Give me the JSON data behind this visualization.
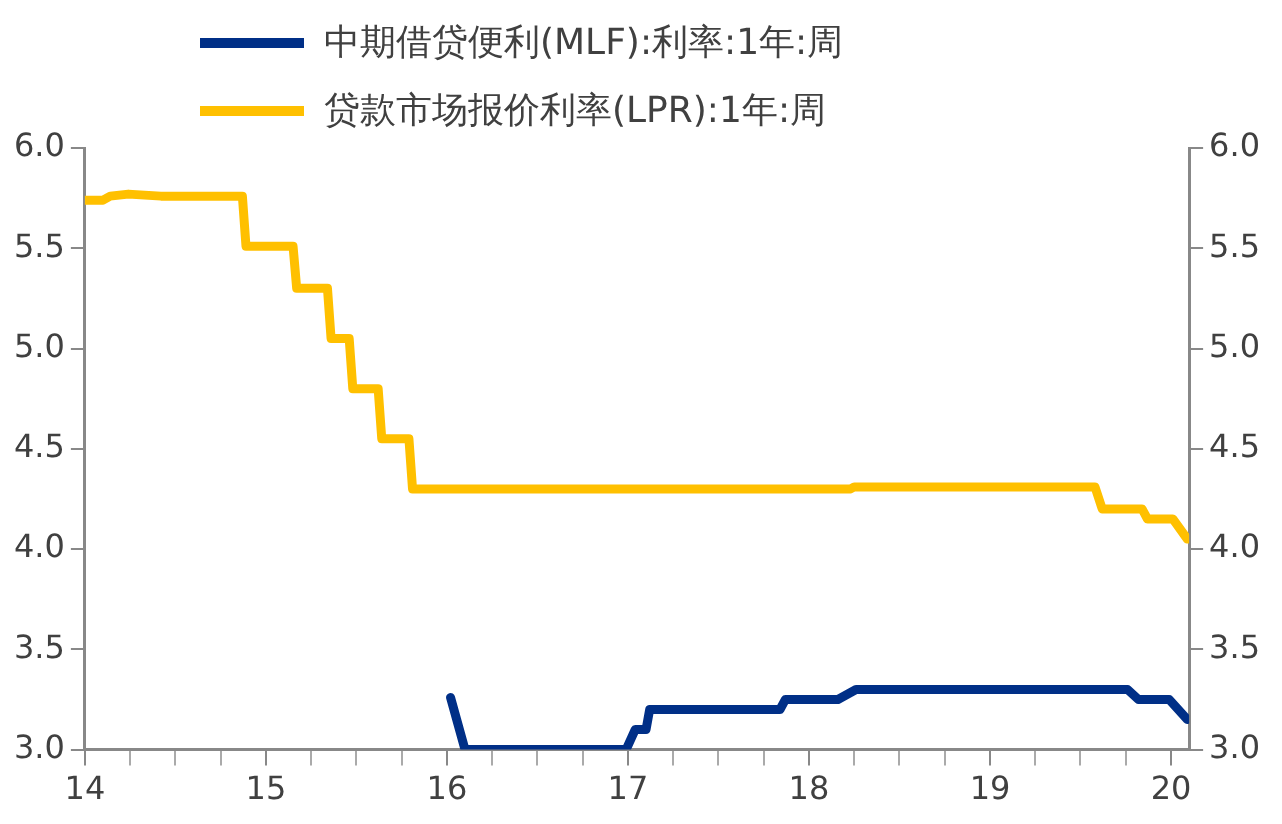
{
  "chart_data": {
    "type": "line",
    "legend": "top",
    "marker": "none",
    "line_style": "solid",
    "grid": false,
    "xlim": [
      14,
      20.1
    ],
    "xticks": [
      14,
      {
        "value": 14.25,
        "label": null
      },
      {
        "value": 14.5,
        "label": null
      },
      {
        "value": 14.75,
        "label": null
      },
      15,
      {
        "value": 15.25,
        "label": null
      },
      {
        "value": 15.5,
        "label": null
      },
      {
        "value": 15.75,
        "label": null
      },
      16,
      {
        "value": 16.25,
        "label": null
      },
      {
        "value": 16.5,
        "label": null
      },
      {
        "value": 16.75,
        "label": null
      },
      17,
      {
        "value": 17.25,
        "label": null
      },
      {
        "value": 17.5,
        "label": null
      },
      {
        "value": 17.75,
        "label": null
      },
      18,
      {
        "value": 18.25,
        "label": null
      },
      {
        "value": 18.5,
        "label": null
      },
      {
        "value": 18.75,
        "label": null
      },
      19,
      {
        "value": 19.25,
        "label": null
      },
      {
        "value": 19.5,
        "label": null
      },
      {
        "value": 19.75,
        "label": null
      },
      20
    ],
    "ylim": [
      3.0,
      6.0
    ],
    "yticks": [
      {
        "value": 3.0,
        "label": "3.0"
      },
      {
        "value": 3.5,
        "label": "3.5"
      },
      {
        "value": 4.0,
        "label": "4.0"
      },
      {
        "value": 4.5,
        "label": "4.5"
      },
      {
        "value": 5.0,
        "label": "5.0"
      },
      {
        "value": 5.5,
        "label": "5.5"
      },
      {
        "value": 6.0,
        "label": "6.0"
      }
    ],
    "y2lim": [
      3.0,
      6.0
    ],
    "y2ticks": [
      {
        "value": 3.0,
        "label": "3.0"
      },
      {
        "value": 3.5,
        "label": "3.5"
      },
      {
        "value": 4.0,
        "label": "4.0"
      },
      {
        "value": 4.5,
        "label": "4.5"
      },
      {
        "value": 5.0,
        "label": "5.0"
      },
      {
        "value": 5.5,
        "label": "5.5"
      },
      {
        "value": 6.0,
        "label": "6.0"
      }
    ],
    "series": [
      {
        "name": "中期借贷便利(MLF):利率:1年:周",
        "color": "#002f87",
        "x": [
          16.02,
          16.1,
          16.99,
          17.04,
          17.1,
          17.12,
          17.84,
          17.87,
          18.16,
          18.26,
          19.76,
          19.82,
          19.99,
          20.09
        ],
        "values": [
          3.26,
          3.0,
          3.0,
          3.1,
          3.1,
          3.2,
          3.2,
          3.25,
          3.25,
          3.3,
          3.3,
          3.25,
          3.25,
          3.15
        ]
      },
      {
        "name": "贷款市场报价利率(LPR):1年:周",
        "color": "#ffc000",
        "x": [
          14,
          14.1,
          14.14,
          14.24,
          14.42,
          14.87,
          14.89,
          15.15,
          15.17,
          15.34,
          15.36,
          15.46,
          15.48,
          15.62,
          15.64,
          15.79,
          15.81,
          18.23,
          18.25,
          19.58,
          19.62,
          19.84,
          19.87,
          20.01,
          20.09
        ],
        "values": [
          5.74,
          5.74,
          5.76,
          5.77,
          5.76,
          5.76,
          5.51,
          5.51,
          5.3,
          5.3,
          5.05,
          5.05,
          4.8,
          4.8,
          4.55,
          4.55,
          4.3,
          4.3,
          4.31,
          4.31,
          4.2,
          4.2,
          4.15,
          4.15,
          4.05
        ]
      }
    ]
  }
}
